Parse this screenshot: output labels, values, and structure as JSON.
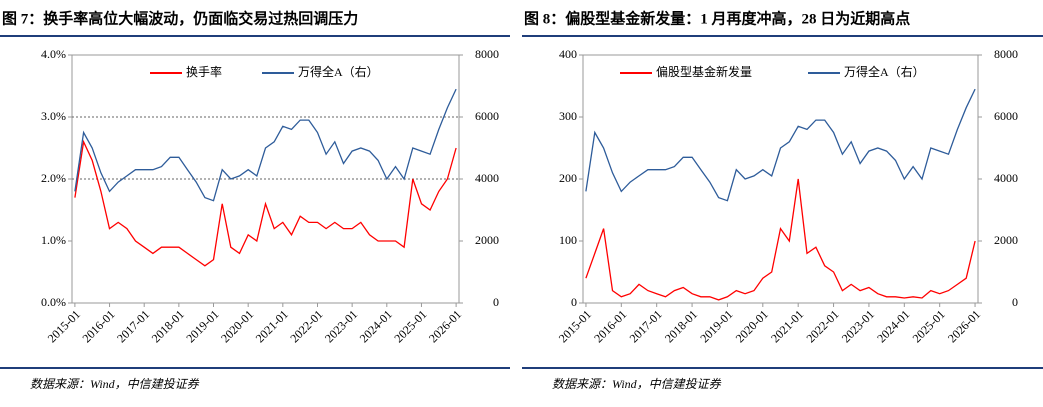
{
  "chart_data": [
    {
      "type": "line",
      "title": "图 7：换手率高位大幅波动，仍面临交易过热回调压力",
      "source": "数据来源：Wind，中信建投证券",
      "x": [
        "2015-01",
        "2015-04",
        "2015-07",
        "2015-10",
        "2016-01",
        "2016-04",
        "2016-07",
        "2016-10",
        "2017-01",
        "2017-04",
        "2017-07",
        "2017-10",
        "2018-01",
        "2018-04",
        "2018-07",
        "2018-10",
        "2019-01",
        "2019-04",
        "2019-07",
        "2019-10",
        "2020-01",
        "2020-04",
        "2020-07",
        "2020-10",
        "2021-01",
        "2021-04",
        "2021-07",
        "2021-10",
        "2022-01",
        "2022-04",
        "2022-07",
        "2022-10",
        "2023-01",
        "2023-04",
        "2023-07",
        "2023-10",
        "2024-01",
        "2024-04",
        "2024-07",
        "2024-10",
        "2025-01",
        "2025-04",
        "2025-07",
        "2025-10",
        "2026-01"
      ],
      "xlim": [
        "2014-12",
        "2026-02"
      ],
      "xticks": [
        "2015-01",
        "2016-01",
        "2017-01",
        "2018-01",
        "2019-01",
        "2020-01",
        "2021-01",
        "2022-01",
        "2023-01",
        "2024-01",
        "2025-01",
        "2026-01"
      ],
      "ylim": [
        0,
        4
      ],
      "yticks": [
        {
          "value": 0,
          "label": "0.0%"
        },
        {
          "value": 1,
          "label": "1.0%"
        },
        {
          "value": 2,
          "label": "2.0%"
        },
        {
          "value": 3,
          "label": "3.0%"
        },
        {
          "value": 4,
          "label": "4.0%"
        }
      ],
      "y2lim": [
        0,
        8000
      ],
      "y2ticks": [
        0,
        2000,
        4000,
        6000,
        8000
      ],
      "reference_lines": [
        2,
        3
      ],
      "series": [
        {
          "name": "换手率",
          "color": "#ff0000",
          "values": [
            1.7,
            2.6,
            2.3,
            1.8,
            1.2,
            1.3,
            1.2,
            1.0,
            0.9,
            0.8,
            0.9,
            0.9,
            0.9,
            0.8,
            0.7,
            0.6,
            0.7,
            1.6,
            0.9,
            0.8,
            1.1,
            1.0,
            1.6,
            1.2,
            1.3,
            1.1,
            1.4,
            1.3,
            1.3,
            1.2,
            1.3,
            1.2,
            1.2,
            1.3,
            1.1,
            1.0,
            1.0,
            1.0,
            0.9,
            2.0,
            1.6,
            1.5,
            1.8,
            2.0,
            2.5
          ]
        },
        {
          "name": "万得全A（右）",
          "color": "#2e5c9a",
          "axis": "y2",
          "values": [
            3600,
            5500,
            5000,
            4200,
            3600,
            3900,
            4100,
            4300,
            4300,
            4300,
            4400,
            4700,
            4700,
            4300,
            3900,
            3400,
            3300,
            4300,
            4000,
            4100,
            4300,
            4100,
            5000,
            5200,
            5700,
            5600,
            5900,
            5900,
            5500,
            4800,
            5200,
            4500,
            4900,
            5000,
            4900,
            4600,
            4000,
            4400,
            4000,
            5000,
            4900,
            4800,
            5600,
            6300,
            6900
          ]
        }
      ]
    },
    {
      "type": "line",
      "title": "图 8：偏股型基金新发量：1 月再度冲高，28 日为近期高点",
      "source": "数据来源：Wind，中信建投证券",
      "x": [
        "2015-01",
        "2015-04",
        "2015-07",
        "2015-10",
        "2016-01",
        "2016-04",
        "2016-07",
        "2016-10",
        "2017-01",
        "2017-04",
        "2017-07",
        "2017-10",
        "2018-01",
        "2018-04",
        "2018-07",
        "2018-10",
        "2019-01",
        "2019-04",
        "2019-07",
        "2019-10",
        "2020-01",
        "2020-04",
        "2020-07",
        "2020-10",
        "2021-01",
        "2021-04",
        "2021-07",
        "2021-10",
        "2022-01",
        "2022-04",
        "2022-07",
        "2022-10",
        "2023-01",
        "2023-04",
        "2023-07",
        "2023-10",
        "2024-01",
        "2024-04",
        "2024-07",
        "2024-10",
        "2025-01",
        "2025-04",
        "2025-07",
        "2025-10",
        "2026-01"
      ],
      "xlim": [
        "2014-12",
        "2026-02"
      ],
      "xticks": [
        "2015-01",
        "2016-01",
        "2017-01",
        "2018-01",
        "2019-01",
        "2020-01",
        "2021-01",
        "2022-01",
        "2023-01",
        "2024-01",
        "2025-01",
        "2026-01"
      ],
      "ylim": [
        0,
        400
      ],
      "yticks": [
        0,
        100,
        200,
        300,
        400
      ],
      "y2lim": [
        0,
        8000
      ],
      "y2ticks": [
        0,
        2000,
        4000,
        6000,
        8000
      ],
      "reference_lines": [],
      "series": [
        {
          "name": "偏股型基金新发量",
          "color": "#ff0000",
          "values": [
            40,
            80,
            120,
            20,
            10,
            15,
            30,
            20,
            15,
            10,
            20,
            25,
            15,
            10,
            10,
            5,
            10,
            20,
            15,
            20,
            40,
            50,
            120,
            100,
            200,
            80,
            90,
            60,
            50,
            20,
            30,
            20,
            25,
            15,
            10,
            10,
            8,
            10,
            8,
            20,
            15,
            20,
            30,
            40,
            100
          ]
        },
        {
          "name": "万得全A（右）",
          "color": "#2e5c9a",
          "axis": "y2",
          "values": [
            3600,
            5500,
            5000,
            4200,
            3600,
            3900,
            4100,
            4300,
            4300,
            4300,
            4400,
            4700,
            4700,
            4300,
            3900,
            3400,
            3300,
            4300,
            4000,
            4100,
            4300,
            4100,
            5000,
            5200,
            5700,
            5600,
            5900,
            5900,
            5500,
            4800,
            5200,
            4500,
            4900,
            5000,
            4900,
            4600,
            4000,
            4400,
            4000,
            5000,
            4900,
            4800,
            5600,
            6300,
            6900
          ]
        }
      ]
    }
  ]
}
